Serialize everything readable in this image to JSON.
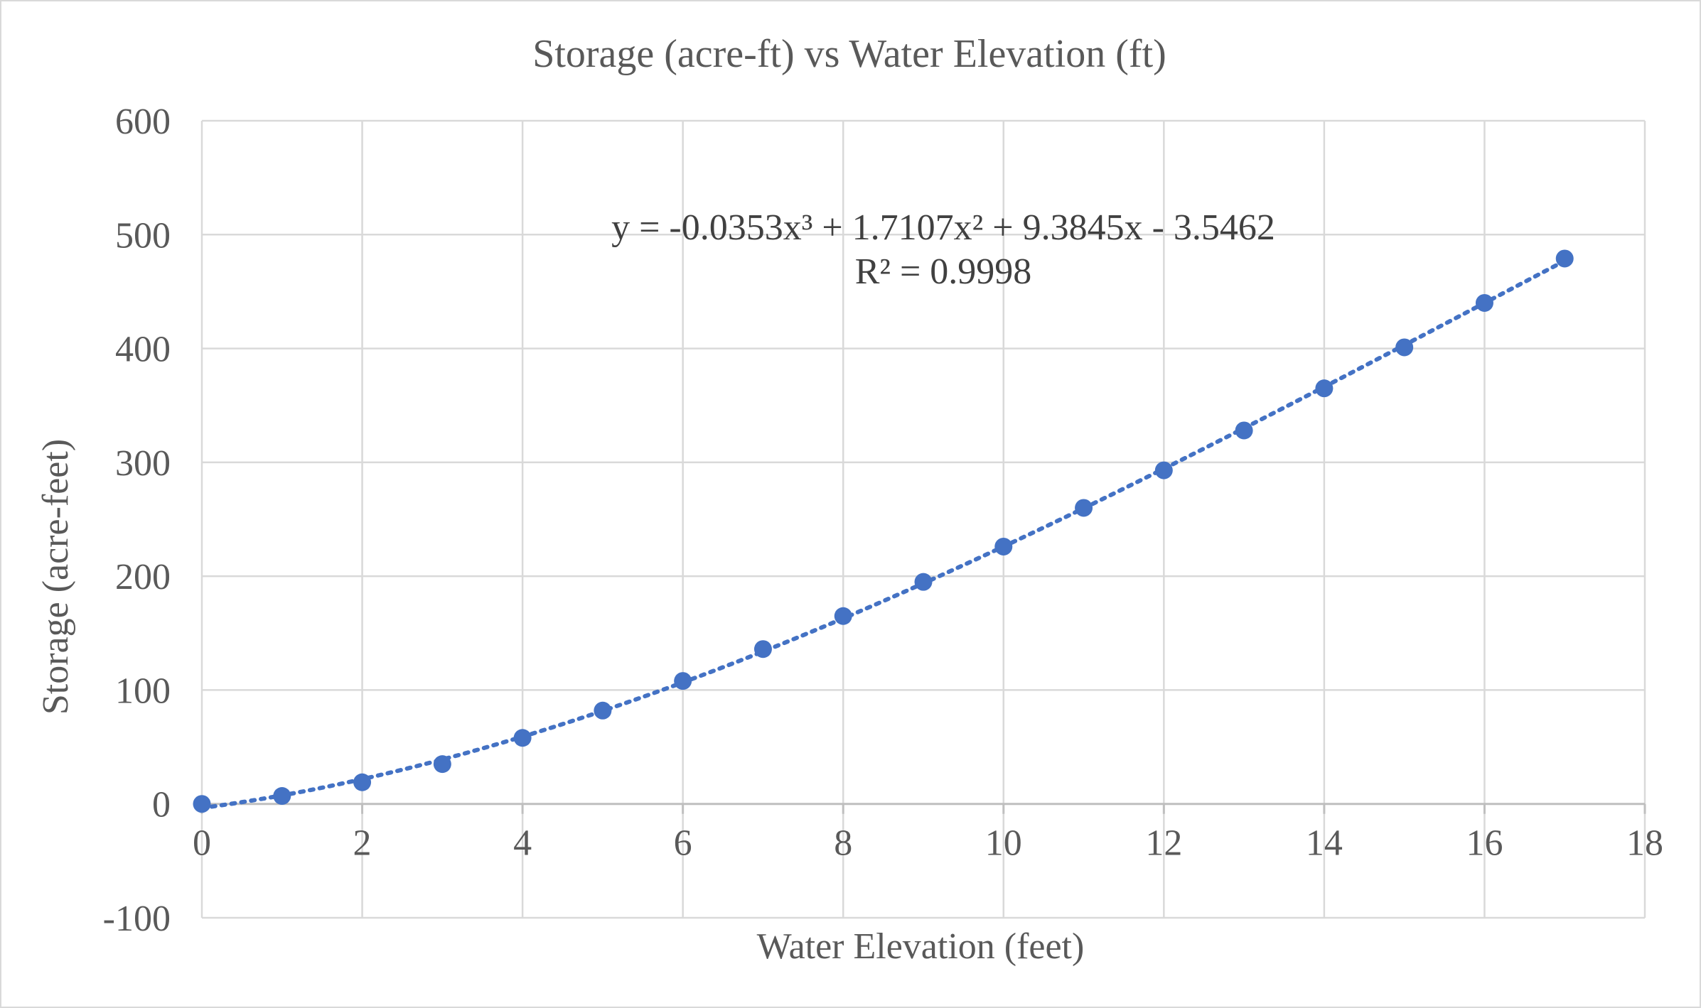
{
  "chart_data": {
    "type": "scatter",
    "title": "Storage (acre-ft) vs Water Elevation (ft)",
    "xlabel": "Water Elevation (feet)",
    "ylabel": "Storage (acre-feet)",
    "xlim": [
      0,
      18
    ],
    "ylim": [
      -100,
      600
    ],
    "xticks": [
      0,
      2,
      4,
      6,
      8,
      10,
      12,
      14,
      16,
      18
    ],
    "xtick_labels": [
      "0",
      "2",
      "4",
      "6",
      "8",
      "10",
      "12",
      "14",
      "16",
      "18"
    ],
    "yticks": [
      -100,
      0,
      100,
      200,
      300,
      400,
      500,
      600
    ],
    "ytick_labels": [
      "-100",
      "0",
      "100",
      "200",
      "300",
      "400",
      "500",
      "600"
    ],
    "grid": true,
    "legend": "none",
    "series": [
      {
        "color": "#4472c4",
        "marker": "circle",
        "x": [
          0,
          1,
          2,
          3,
          4,
          5,
          6,
          7,
          8,
          9,
          10,
          11,
          12,
          13,
          14,
          15,
          16,
          17
        ],
        "y": [
          0,
          7,
          19,
          35,
          58,
          82,
          108,
          136,
          165,
          195,
          226,
          260,
          293,
          328,
          365,
          401,
          440,
          479
        ]
      }
    ],
    "trendline": {
      "type": "polynomial",
      "order": 3,
      "coefficients": [
        -0.0353,
        1.7107,
        9.3845,
        -3.5462
      ],
      "style": "dotted",
      "color": "#4472c4",
      "equation_label": "y = -0.0353x³ + 1.7107x² + 9.3845x - 3.5462",
      "r2_label": "R² = 0.9998"
    },
    "gridline_color": "#d9d9d9"
  }
}
